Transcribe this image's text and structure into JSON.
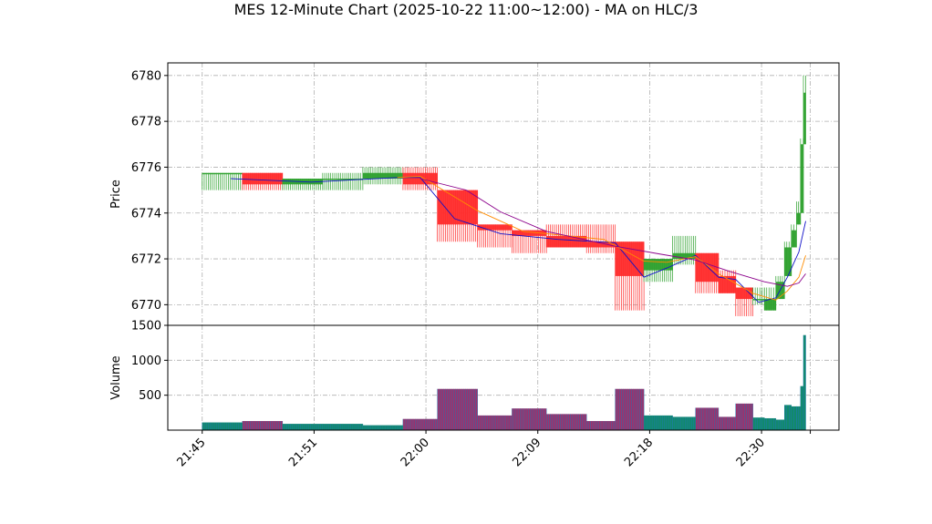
{
  "chart_data": {
    "type": "candlestick",
    "title": "MES 12-Minute Chart (2025-10-22 11:00~12:00) - MA on HLC/3",
    "x_ticks": [
      "21:45",
      "21:51",
      "22:00",
      "22:09",
      "22:18",
      "22:30"
    ],
    "price_panel": {
      "ylabel": "Price",
      "ylim": [
        6769.1,
        6780.55
      ],
      "y_ticks": [
        6770,
        6772,
        6774,
        6776,
        6778,
        6780
      ],
      "grid": true
    },
    "volume_panel": {
      "ylabel": "Volume",
      "ylim": [
        0,
        1500
      ],
      "y_ticks": [
        500,
        1000,
        1500
      ],
      "grid": true
    },
    "bar_fraction": 0.3,
    "bars": [
      {
        "t": 0.0,
        "w": 3.5,
        "o": 6775.75,
        "h": 6775.75,
        "l": 6775.0,
        "c": 6775.75,
        "v": 110
      },
      {
        "t": 3.5,
        "w": 3.5,
        "o": 6775.75,
        "h": 6775.75,
        "l": 6775.0,
        "c": 6775.25,
        "v": 130
      },
      {
        "t": 7.0,
        "w": 3.5,
        "o": 6775.25,
        "h": 6775.5,
        "l": 6775.0,
        "c": 6775.5,
        "v": 90
      },
      {
        "t": 10.5,
        "w": 3.5,
        "o": 6775.5,
        "h": 6775.75,
        "l": 6775.0,
        "c": 6775.5,
        "v": 90
      },
      {
        "t": 14.0,
        "w": 3.5,
        "o": 6775.5,
        "h": 6776.0,
        "l": 6775.25,
        "c": 6775.75,
        "v": 70
      },
      {
        "t": 17.5,
        "w": 3.0,
        "o": 6775.75,
        "h": 6776.0,
        "l": 6775.0,
        "c": 6775.25,
        "v": 160
      },
      {
        "t": 20.5,
        "w": 3.5,
        "o": 6775.0,
        "h": 6775.0,
        "l": 6772.75,
        "c": 6773.5,
        "v": 590
      },
      {
        "t": 24.0,
        "w": 3.0,
        "o": 6773.5,
        "h": 6773.5,
        "l": 6772.5,
        "c": 6773.25,
        "v": 210
      },
      {
        "t": 27.0,
        "w": 3.0,
        "o": 6773.25,
        "h": 6773.25,
        "l": 6772.25,
        "c": 6773.0,
        "v": 310
      },
      {
        "t": 30.0,
        "w": 3.5,
        "o": 6773.0,
        "h": 6773.5,
        "l": 6772.5,
        "c": 6772.5,
        "v": 230
      },
      {
        "t": 33.5,
        "w": 2.5,
        "o": 6772.75,
        "h": 6773.5,
        "l": 6772.25,
        "c": 6772.5,
        "v": 130
      },
      {
        "t": 36.0,
        "w": 2.5,
        "o": 6772.75,
        "h": 6772.75,
        "l": 6769.75,
        "c": 6771.25,
        "v": 590
      },
      {
        "t": 38.5,
        "w": 2.5,
        "o": 6771.5,
        "h": 6772.0,
        "l": 6771.0,
        "c": 6772.0,
        "v": 210
      },
      {
        "t": 41.0,
        "w": 2.0,
        "o": 6772.0,
        "h": 6773.0,
        "l": 6771.75,
        "c": 6772.25,
        "v": 190
      },
      {
        "t": 43.0,
        "w": 2.0,
        "o": 6772.25,
        "h": 6772.0,
        "l": 6770.5,
        "c": 6771.0,
        "v": 320
      },
      {
        "t": 45.0,
        "w": 1.5,
        "o": 6771.25,
        "h": 6771.5,
        "l": 6770.5,
        "c": 6770.5,
        "v": 190
      },
      {
        "t": 46.5,
        "w": 1.5,
        "o": 6770.75,
        "h": 6770.75,
        "l": 6769.5,
        "c": 6770.25,
        "v": 380
      },
      {
        "t": 48.0,
        "w": 1.0,
        "o": 6770.25,
        "h": 6770.75,
        "l": 6770.0,
        "c": 6770.25,
        "v": 180
      },
      {
        "t": 49.0,
        "w": 1.0,
        "o": 6769.75,
        "h": 6770.75,
        "l": 6769.75,
        "c": 6770.25,
        "v": 170
      },
      {
        "t": 50.0,
        "w": 0.75,
        "o": 6770.25,
        "h": 6771.25,
        "l": 6770.25,
        "c": 6771.0,
        "v": 150
      },
      {
        "t": 50.75,
        "w": 0.6,
        "o": 6771.25,
        "h": 6772.75,
        "l": 6771.25,
        "c": 6772.5,
        "v": 360
      },
      {
        "t": 51.35,
        "w": 0.45,
        "o": 6772.5,
        "h": 6773.5,
        "l": 6772.5,
        "c": 6773.25,
        "v": 340
      },
      {
        "t": 51.8,
        "w": 0.35,
        "o": 6773.5,
        "h": 6774.5,
        "l": 6773.5,
        "c": 6774.0,
        "v": 340
      },
      {
        "t": 52.15,
        "w": 0.25,
        "o": 6774.0,
        "h": 6777.25,
        "l": 6774.0,
        "c": 6777.0,
        "v": 630
      },
      {
        "t": 52.4,
        "w": 0.2,
        "o": 6777.0,
        "h": 6780.0,
        "l": 6777.0,
        "c": 6779.25,
        "v": 1360
      }
    ],
    "ma_series": [
      {
        "color": "#1010c8",
        "points": [
          [
            2.5,
            6775.5
          ],
          [
            9.5,
            6775.35
          ],
          [
            17.0,
            6775.55
          ],
          [
            19.0,
            6775.55
          ],
          [
            22.0,
            6773.75
          ],
          [
            26.0,
            6773.1
          ],
          [
            31.0,
            6772.85
          ],
          [
            36.0,
            6772.7
          ],
          [
            38.5,
            6771.2
          ],
          [
            40.5,
            6771.6
          ],
          [
            43.0,
            6772.15
          ],
          [
            45.0,
            6771.2
          ],
          [
            46.5,
            6771.1
          ],
          [
            48.5,
            6770.1
          ],
          [
            50.0,
            6770.3
          ],
          [
            51.0,
            6771.2
          ],
          [
            52.0,
            6772.3
          ],
          [
            52.6,
            6773.65
          ]
        ]
      },
      {
        "color": "#ff8c00",
        "points": [
          [
            17.0,
            6775.55
          ],
          [
            19.0,
            6775.6
          ],
          [
            24.0,
            6774.1
          ],
          [
            28.0,
            6773.2
          ],
          [
            35.0,
            6772.85
          ],
          [
            38.5,
            6771.9
          ],
          [
            40.5,
            6771.85
          ],
          [
            43.0,
            6772.1
          ],
          [
            45.0,
            6771.35
          ],
          [
            48.0,
            6770.5
          ],
          [
            50.0,
            6770.2
          ],
          [
            51.0,
            6770.6
          ],
          [
            52.0,
            6771.2
          ],
          [
            52.6,
            6772.15
          ]
        ]
      },
      {
        "color": "#8b008b",
        "points": [
          [
            19.0,
            6775.5
          ],
          [
            23.0,
            6775.0
          ],
          [
            26.0,
            6774.05
          ],
          [
            30.0,
            6773.2
          ],
          [
            36.0,
            6772.55
          ],
          [
            40.0,
            6772.2
          ],
          [
            43.0,
            6771.95
          ],
          [
            46.0,
            6771.45
          ],
          [
            49.0,
            6771.0
          ],
          [
            51.0,
            6770.8
          ],
          [
            52.0,
            6770.95
          ],
          [
            52.6,
            6771.35
          ]
        ]
      }
    ],
    "colors": {
      "up": "#2ca02c",
      "down": "#ff2b2b",
      "up_fill_volume": "#118a6a",
      "down_fill_volume": "#a0306a",
      "volume_edge": "#1f77b4",
      "grid": "#b0b0b0"
    }
  }
}
